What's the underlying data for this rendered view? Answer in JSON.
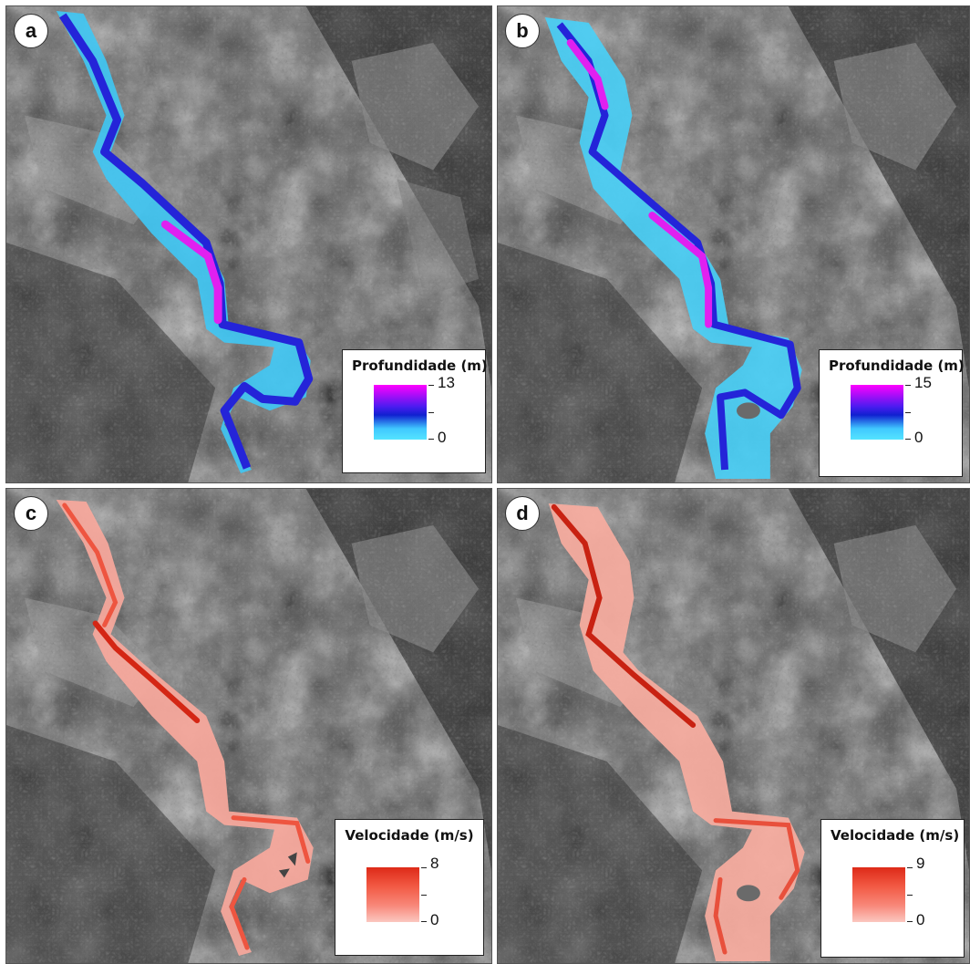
{
  "panels": [
    {
      "label": "a",
      "legend": {
        "title": "Profundidade (m)",
        "max": "13",
        "min": "0",
        "ramp": [
          "#ff00ff",
          "#1020d0",
          "#55e4ff"
        ]
      }
    },
    {
      "label": "b",
      "legend": {
        "title": "Profundidade (m)",
        "max": "15",
        "min": "0",
        "ramp": [
          "#ff00ff",
          "#1020d0",
          "#55e4ff"
        ]
      }
    },
    {
      "label": "c",
      "legend": {
        "title": "Velocidade (m/s)",
        "max": "8",
        "min": "0",
        "ramp": [
          "#dd2a18",
          "#fbc7c0"
        ]
      }
    },
    {
      "label": "d",
      "legend": {
        "title": "Velocidade (m/s)",
        "max": "9",
        "min": "0",
        "ramp": [
          "#dd2a18",
          "#fbc7c0"
        ]
      }
    }
  ]
}
